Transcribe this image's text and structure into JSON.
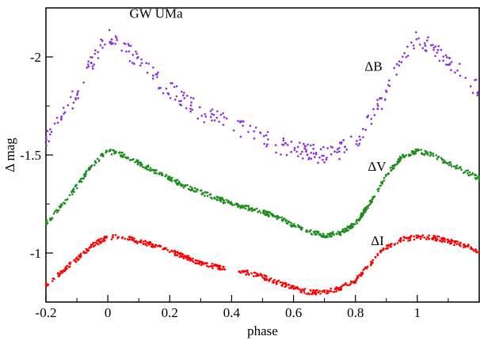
{
  "chart_data": {
    "type": "scatter",
    "title": "GW UMa",
    "xlabel": "phase",
    "ylabel": "Δ mag",
    "xlim": [
      -0.2,
      1.2
    ],
    "ylim": [
      -0.75,
      -2.25
    ],
    "y_inverted": true,
    "grid": false,
    "x_ticks": [
      -0.2,
      0,
      0.2,
      0.4,
      0.6,
      0.8,
      1
    ],
    "x_tick_labels": [
      "-0.2",
      "0",
      "0.2",
      "0.4",
      "0.6",
      "0.8",
      "1"
    ],
    "y_ticks": [
      -1,
      -1.5,
      -2
    ],
    "y_tick_labels": [
      "-1",
      "-1.5",
      "-2"
    ],
    "annotations": [
      {
        "text": "GW UMa",
        "x": 0.07,
        "y": -2.2
      },
      {
        "text": "ΔB",
        "x": 0.83,
        "y": -1.93
      },
      {
        "text": "ΔV",
        "x": 0.84,
        "y": -1.42
      },
      {
        "text": "ΔI",
        "x": 0.85,
        "y": -1.04
      }
    ],
    "series": [
      {
        "name": "ΔB",
        "color": "#8a2be2",
        "x": [
          -0.2,
          -0.15,
          -0.1,
          -0.05,
          0.0,
          0.05,
          0.1,
          0.15,
          0.2,
          0.25,
          0.3,
          0.35,
          0.4,
          0.45,
          0.5,
          0.55,
          0.6,
          0.65,
          0.7,
          0.75,
          0.8,
          0.85,
          0.9,
          0.95,
          1.0,
          1.05,
          1.1,
          1.15,
          1.2
        ],
        "y": [
          -1.57,
          -1.68,
          -1.82,
          -1.98,
          -2.1,
          -2.05,
          -1.98,
          -1.9,
          -1.83,
          -1.78,
          -1.72,
          -1.68,
          -1.66,
          -1.62,
          -1.6,
          -1.55,
          -1.53,
          -1.51,
          -1.5,
          -1.52,
          -1.57,
          -1.68,
          -1.82,
          -1.98,
          -2.1,
          -2.05,
          -1.98,
          -1.9,
          -1.83
        ]
      },
      {
        "name": "ΔV",
        "color": "#1e8c1e",
        "x": [
          -0.2,
          -0.15,
          -0.1,
          -0.05,
          0.0,
          0.05,
          0.1,
          0.15,
          0.2,
          0.25,
          0.3,
          0.35,
          0.4,
          0.45,
          0.5,
          0.55,
          0.6,
          0.65,
          0.7,
          0.75,
          0.8,
          0.85,
          0.9,
          0.95,
          1.0,
          1.05,
          1.1,
          1.15,
          1.2
        ],
        "y": [
          -1.15,
          -1.24,
          -1.34,
          -1.45,
          -1.52,
          -1.5,
          -1.46,
          -1.42,
          -1.38,
          -1.34,
          -1.31,
          -1.28,
          -1.25,
          -1.23,
          -1.21,
          -1.18,
          -1.14,
          -1.11,
          -1.09,
          -1.1,
          -1.15,
          -1.26,
          -1.4,
          -1.49,
          -1.52,
          -1.5,
          -1.46,
          -1.42,
          -1.38
        ]
      },
      {
        "name": "ΔI",
        "color": "#ff0000",
        "x": [
          -0.2,
          -0.15,
          -0.1,
          -0.05,
          0.0,
          0.05,
          0.1,
          0.15,
          0.2,
          0.25,
          0.3,
          0.35,
          0.4,
          0.45,
          0.5,
          0.55,
          0.6,
          0.65,
          0.7,
          0.75,
          0.8,
          0.85,
          0.9,
          0.95,
          1.0,
          1.05,
          1.1,
          1.15,
          1.2
        ],
        "y": [
          -0.84,
          -0.9,
          -0.97,
          -1.04,
          -1.08,
          -1.08,
          -1.06,
          -1.04,
          -1.01,
          -0.98,
          -0.95,
          -0.93,
          -0.92,
          -0.9,
          -0.88,
          -0.85,
          -0.82,
          -0.8,
          -0.8,
          -0.82,
          -0.86,
          -0.95,
          -1.03,
          -1.07,
          -1.08,
          -1.08,
          -1.06,
          -1.04,
          -1.01
        ]
      }
    ]
  }
}
